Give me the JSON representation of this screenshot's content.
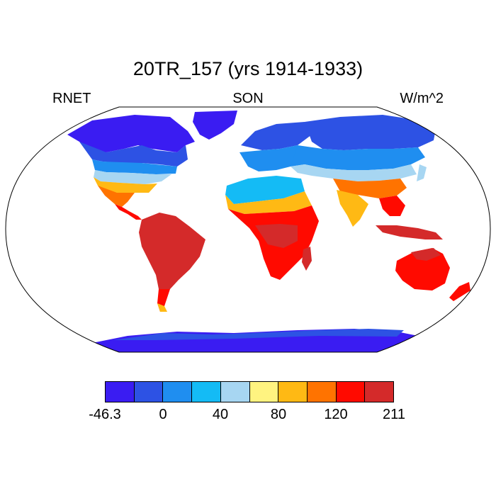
{
  "title": "20TR_157 (yrs 1914-1933)",
  "left_string": "RNET",
  "center_string": "SON",
  "right_string": "W/m^2",
  "colorbar": {
    "colors": [
      "#3a1cf2",
      "#2d52e4",
      "#1f8ef0",
      "#14bbf5",
      "#a7d6f2",
      "#fff380",
      "#ffb914",
      "#ff7300",
      "#ff0a00",
      "#d42a2a"
    ],
    "labels": [
      "-46.3",
      "0",
      "40",
      "80",
      "120",
      "211"
    ]
  },
  "map": {
    "projection": "Robinson",
    "field": "RNET",
    "season": "SON",
    "units": "W/m^2",
    "ocean_masked": true
  }
}
